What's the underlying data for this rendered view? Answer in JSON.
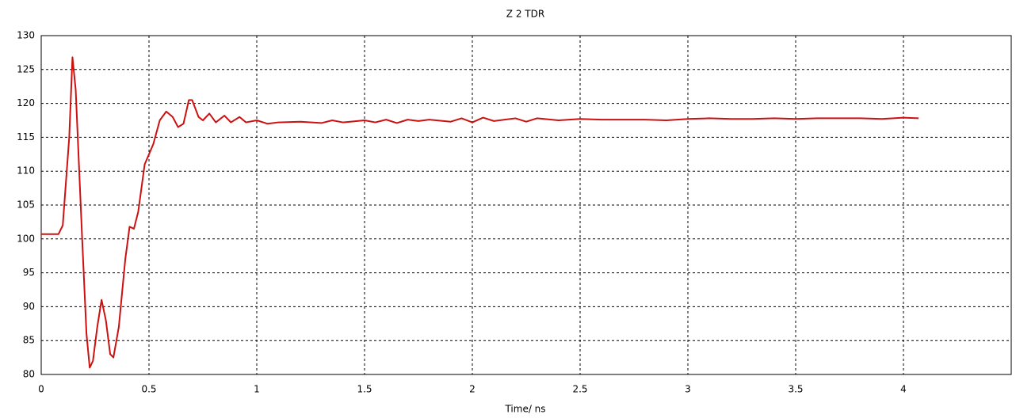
{
  "chart_data": {
    "type": "line",
    "title": "Z 2 TDR",
    "x_label": "Time/ ns",
    "x": [
      0,
      0.08,
      0.1,
      0.13,
      0.145,
      0.16,
      0.19,
      0.21,
      0.225,
      0.24,
      0.26,
      0.28,
      0.3,
      0.32,
      0.335,
      0.36,
      0.39,
      0.41,
      0.43,
      0.45,
      0.48,
      0.52,
      0.55,
      0.58,
      0.61,
      0.635,
      0.66,
      0.685,
      0.7,
      0.73,
      0.75,
      0.78,
      0.81,
      0.85,
      0.88,
      0.92,
      0.95,
      1,
      1.05,
      1.1,
      1.2,
      1.3,
      1.35,
      1.4,
      1.5,
      1.55,
      1.6,
      1.65,
      1.7,
      1.75,
      1.8,
      1.9,
      1.95,
      2,
      2.05,
      2.1,
      2.15,
      2.2,
      2.25,
      2.3,
      2.4,
      2.5,
      2.6,
      2.7,
      2.8,
      2.9,
      3,
      3.1,
      3.2,
      3.3,
      3.4,
      3.5,
      3.6,
      3.7,
      3.8,
      3.9,
      4,
      4.07
    ],
    "values": [
      100.7,
      100.7,
      102,
      115,
      126.8,
      122,
      100,
      86,
      81,
      82,
      87,
      91,
      88,
      83,
      82.5,
      87,
      97,
      101.8,
      101.5,
      104,
      111,
      114,
      117.5,
      118.8,
      118,
      116.5,
      117,
      120.5,
      120.5,
      118,
      117.5,
      118.5,
      117.2,
      118.2,
      117.2,
      118,
      117.2,
      117.5,
      117,
      117.2,
      117.3,
      117.1,
      117.5,
      117.2,
      117.5,
      117.2,
      117.6,
      117.1,
      117.6,
      117.4,
      117.6,
      117.3,
      117.8,
      117.2,
      117.9,
      117.4,
      117.6,
      117.8,
      117.3,
      117.8,
      117.5,
      117.7,
      117.6,
      117.6,
      117.6,
      117.5,
      117.7,
      117.8,
      117.7,
      117.7,
      117.8,
      117.7,
      117.8,
      117.8,
      117.8,
      117.7,
      117.9,
      117.8
    ],
    "color": "#cc1111",
    "xlim": [
      0,
      4.5
    ],
    "xticks": [
      0,
      0.5,
      1,
      1.5,
      2,
      2.5,
      3,
      3.5,
      4
    ],
    "ylim": [
      80,
      130
    ],
    "yticks": [
      80,
      85,
      90,
      95,
      100,
      105,
      110,
      115,
      120,
      125,
      130
    ],
    "grid": true
  }
}
